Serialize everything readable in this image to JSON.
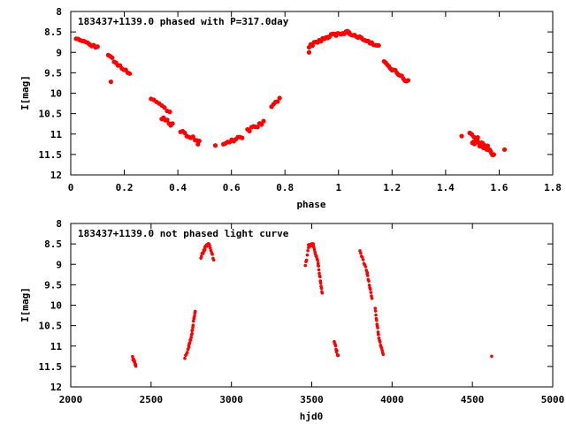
{
  "chart_data": [
    {
      "type": "scatter",
      "title": "183437+1139.0 phased with P=317.0day",
      "xlabel": "phase",
      "ylabel": "I[mag]",
      "xlim": [
        0,
        1.8
      ],
      "ylim": [
        12,
        8
      ],
      "y_inverted": true,
      "grid": false,
      "legend": "none",
      "marker_color": "#ff0000",
      "xticks": [
        0,
        0.2,
        0.4,
        0.6,
        0.8,
        1,
        1.2,
        1.4,
        1.6,
        1.8
      ],
      "xtick_labels": [
        "0",
        "0.2",
        "0.4",
        "0.6",
        "0.8",
        "1",
        "1.2",
        "1.4",
        "1.6",
        "1.8"
      ],
      "yticks": [
        8,
        8.5,
        9,
        9.5,
        10,
        10.5,
        11,
        11.5,
        12
      ],
      "ytick_labels": [
        "8",
        "8.5",
        "9",
        "9.5",
        "10",
        "10.5",
        "11",
        "11.5",
        "12"
      ],
      "segments": [
        {
          "x0": 0.02,
          "x1": 0.1,
          "y0": 8.68,
          "y1": 8.88,
          "n": 12,
          "jitter": 0.03
        },
        {
          "x0": 0.14,
          "x1": 0.22,
          "y0": 9.08,
          "y1": 9.55,
          "n": 12,
          "jitter": 0.05
        },
        {
          "x0": 0.3,
          "x1": 0.37,
          "y0": 10.15,
          "y1": 10.5,
          "n": 8,
          "jitter": 0.05
        },
        {
          "x0": 0.34,
          "x1": 0.38,
          "y0": 10.6,
          "y1": 10.78,
          "n": 7,
          "jitter": 0.05
        },
        {
          "x0": 0.41,
          "x1": 0.48,
          "y0": 10.92,
          "y1": 11.2,
          "n": 10,
          "jitter": 0.05
        },
        {
          "x0": 0.57,
          "x1": 0.64,
          "y0": 11.22,
          "y1": 11.08,
          "n": 10,
          "jitter": 0.04
        },
        {
          "x0": 0.66,
          "x1": 0.72,
          "y0": 10.92,
          "y1": 10.72,
          "n": 9,
          "jitter": 0.04
        },
        {
          "x0": 0.75,
          "x1": 0.78,
          "y0": 10.35,
          "y1": 10.12,
          "n": 5,
          "jitter": 0.04
        },
        {
          "x0": 0.89,
          "x1": 0.96,
          "y0": 8.85,
          "y1": 8.62,
          "n": 12,
          "jitter": 0.04
        },
        {
          "x0": 0.96,
          "x1": 1.04,
          "y0": 8.6,
          "y1": 8.5,
          "n": 14,
          "jitter": 0.03
        },
        {
          "x0": 1.04,
          "x1": 1.15,
          "y0": 8.52,
          "y1": 8.85,
          "n": 18,
          "jitter": 0.03
        },
        {
          "x0": 1.17,
          "x1": 1.26,
          "y0": 9.25,
          "y1": 9.72,
          "n": 16,
          "jitter": 0.04
        },
        {
          "x0": 1.49,
          "x1": 1.52,
          "y0": 10.95,
          "y1": 11.12,
          "n": 5,
          "jitter": 0.04
        },
        {
          "x0": 1.5,
          "x1": 1.58,
          "y0": 11.15,
          "y1": 11.45,
          "n": 22,
          "jitter": 0.08
        }
      ],
      "points": [
        {
          "x": 0.15,
          "y": 9.72
        },
        {
          "x": 0.475,
          "y": 11.25
        },
        {
          "x": 0.54,
          "y": 11.28
        },
        {
          "x": 0.89,
          "y": 9.0
        },
        {
          "x": 1.46,
          "y": 11.05
        },
        {
          "x": 1.62,
          "y": 11.38
        }
      ]
    },
    {
      "type": "scatter",
      "title": "183437+1139.0 not phased light curve",
      "xlabel": "hjd0",
      "ylabel": "I[mag]",
      "xlim": [
        2000,
        5000
      ],
      "ylim": [
        12,
        8
      ],
      "y_inverted": true,
      "grid": false,
      "legend": "none",
      "marker_color": "#ff0000",
      "xticks": [
        2000,
        2500,
        3000,
        3500,
        4000,
        4500,
        5000
      ],
      "xtick_labels": [
        "2000",
        "2500",
        "3000",
        "3500",
        "4000",
        "4500",
        "5000"
      ],
      "yticks": [
        8,
        8.5,
        9,
        9.5,
        10,
        10.5,
        11,
        11.5,
        12
      ],
      "ytick_labels": [
        "8",
        "8.5",
        "9",
        "9.5",
        "10",
        "10.5",
        "11",
        "11.5",
        "12"
      ],
      "segments": [
        {
          "x0": 2385,
          "x1": 2405,
          "y0": 11.28,
          "y1": 11.45,
          "n": 10,
          "jitter": 0.05
        },
        {
          "x0": 2710,
          "x1": 2735,
          "y0": 11.28,
          "y1": 11.05,
          "n": 6,
          "jitter": 0.03
        },
        {
          "x0": 2735,
          "x1": 2755,
          "y0": 11.0,
          "y1": 10.7,
          "n": 8,
          "jitter": 0.03
        },
        {
          "x0": 2755,
          "x1": 2775,
          "y0": 10.65,
          "y1": 10.12,
          "n": 10,
          "jitter": 0.03
        },
        {
          "x0": 2810,
          "x1": 2835,
          "y0": 8.82,
          "y1": 8.6,
          "n": 8,
          "jitter": 0.04
        },
        {
          "x0": 2835,
          "x1": 2860,
          "y0": 8.6,
          "y1": 8.48,
          "n": 8,
          "jitter": 0.03
        },
        {
          "x0": 2860,
          "x1": 2890,
          "y0": 8.5,
          "y1": 8.88,
          "n": 8,
          "jitter": 0.03
        },
        {
          "x0": 3460,
          "x1": 3480,
          "y0": 9.05,
          "y1": 8.6,
          "n": 6,
          "jitter": 0.03
        },
        {
          "x0": 3480,
          "x1": 3510,
          "y0": 8.55,
          "y1": 8.5,
          "n": 10,
          "jitter": 0.03
        },
        {
          "x0": 3510,
          "x1": 3540,
          "y0": 8.55,
          "y1": 8.95,
          "n": 10,
          "jitter": 0.03
        },
        {
          "x0": 3540,
          "x1": 3565,
          "y0": 9.0,
          "y1": 9.72,
          "n": 12,
          "jitter": 0.03
        },
        {
          "x0": 3640,
          "x1": 3665,
          "y0": 10.92,
          "y1": 11.25,
          "n": 10,
          "jitter": 0.04
        },
        {
          "x0": 3800,
          "x1": 3845,
          "y0": 8.68,
          "y1": 9.2,
          "n": 10,
          "jitter": 0.03
        },
        {
          "x0": 3845,
          "x1": 3875,
          "y0": 9.2,
          "y1": 9.85,
          "n": 10,
          "jitter": 0.03
        },
        {
          "x0": 3895,
          "x1": 3915,
          "y0": 10.1,
          "y1": 10.7,
          "n": 10,
          "jitter": 0.04
        },
        {
          "x0": 3915,
          "x1": 3945,
          "y0": 10.75,
          "y1": 11.2,
          "n": 10,
          "jitter": 0.04
        }
      ],
      "points": [
        {
          "x": 4620,
          "y": 11.25
        }
      ]
    }
  ]
}
